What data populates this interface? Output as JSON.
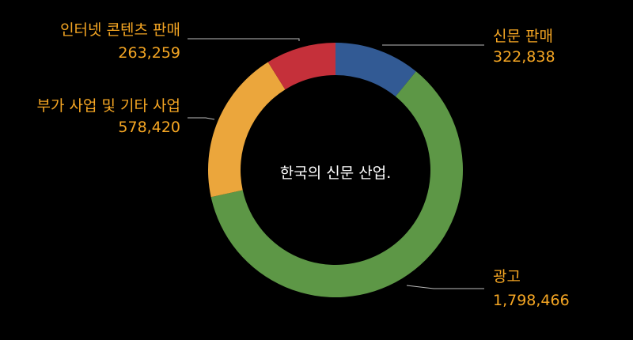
{
  "chart_data": {
    "type": "pie",
    "title": "한국의 신문 산업.",
    "slices": [
      {
        "name": "신문 판매",
        "value": 322838,
        "value_text": "322,838",
        "color": "#325a94"
      },
      {
        "name": "광고",
        "value": 1798466,
        "value_text": "1,798,466",
        "color": "#5d9746"
      },
      {
        "name": "부가 사업 및 기타 사업",
        "value": 578420,
        "value_text": "578,420",
        "color": "#eba63c"
      },
      {
        "name": "인터넷 콘텐츠 판매",
        "value": 263259,
        "value_text": "263,259",
        "color": "#c5303a"
      }
    ],
    "label_color": "#f5a623",
    "title_color": "#ffffff",
    "background": "#000000",
    "leader_color": "#bbbbbb"
  }
}
